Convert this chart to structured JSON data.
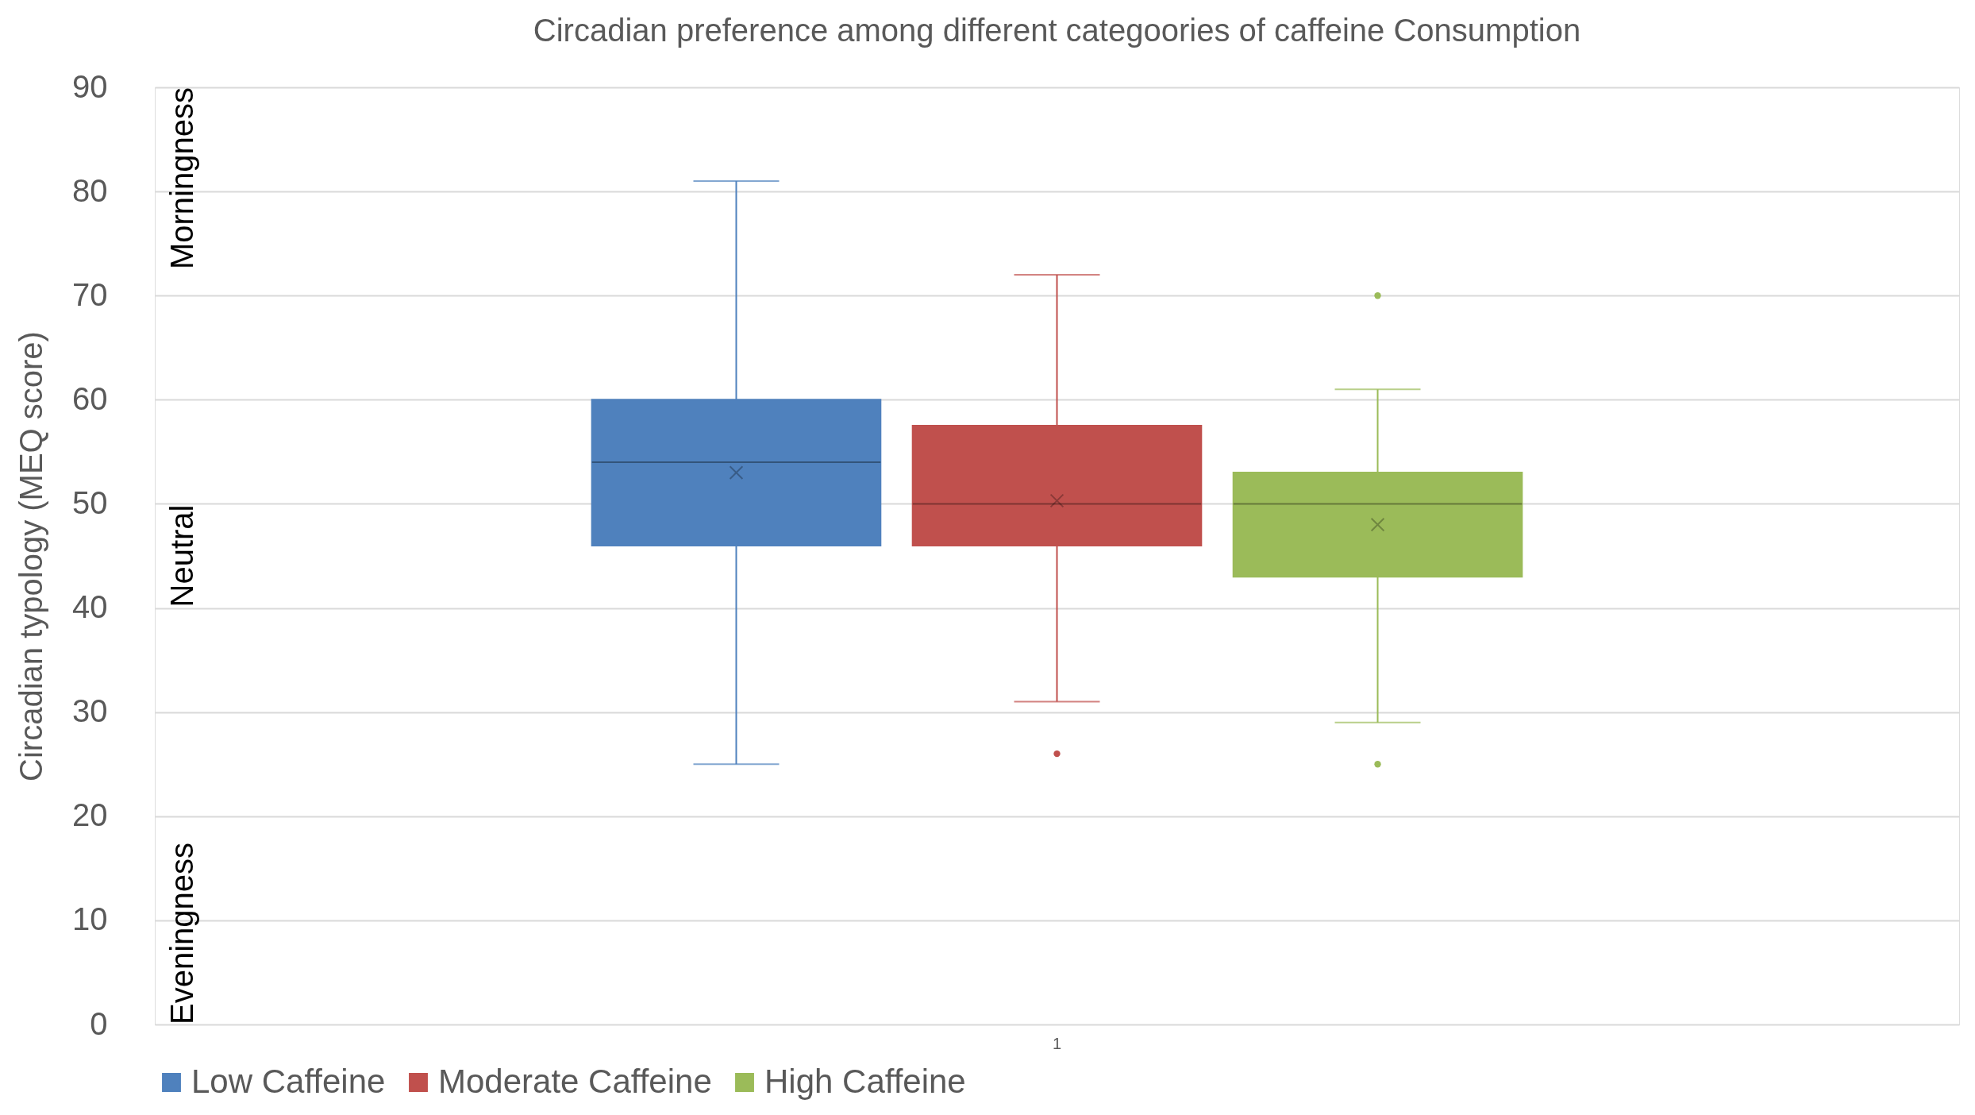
{
  "chart_data": {
    "type": "box",
    "title": "Circadian preference among different categoories of caffeine Consumption",
    "ylabel": "Circadian typology (MEQ score)",
    "categories": [
      "1"
    ],
    "ylim": [
      0,
      90
    ],
    "yticks": [
      0,
      10,
      20,
      30,
      40,
      50,
      60,
      70,
      80,
      90
    ],
    "grid": "y",
    "legend": "bottom",
    "series": [
      {
        "name": "Low Caffeine",
        "color": "#4f81bd",
        "boxes": [
          {
            "low": 25,
            "q1": 46,
            "median": 54,
            "q3": 60,
            "high": 81,
            "mean": 53
          }
        ]
      },
      {
        "name": "Moderate Caffeine",
        "color": "#c0504d",
        "boxes": [
          {
            "low": 31,
            "q1": 46,
            "median": 50,
            "q3": 57.5,
            "high": 72,
            "mean": 50.3,
            "outliers": [
              26
            ]
          }
        ]
      },
      {
        "name": "High Caffeine",
        "color": "#9bbb59",
        "boxes": [
          {
            "low": 29,
            "q1": 43,
            "median": 50,
            "q3": 53,
            "high": 61,
            "mean": 48,
            "outliers": [
              70,
              25
            ]
          }
        ]
      }
    ],
    "annotations": [
      "Morningness",
      "Neutral",
      "Eveningness"
    ]
  }
}
